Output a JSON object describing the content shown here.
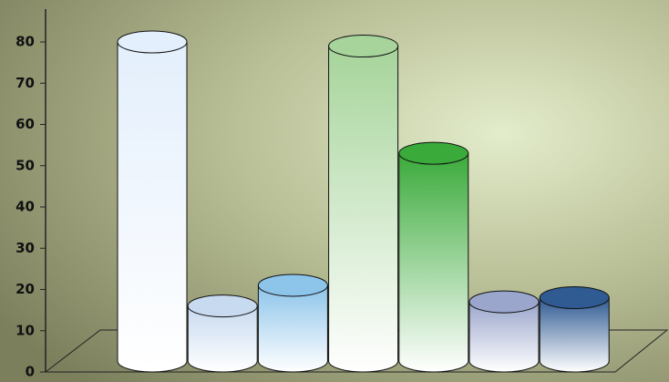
{
  "chart_data": {
    "type": "cylinder-bar",
    "categories": [
      null,
      null,
      null,
      null,
      null,
      null,
      null
    ],
    "values": [
      80,
      16,
      21,
      79,
      53,
      17,
      18
    ],
    "colors": [
      "#e3effc",
      "#c8daf0",
      "#8cc4ea",
      "#a6d49a",
      "#3aaa3a",
      "#9aa6cc",
      "#2f5a92"
    ],
    "ylim": [
      0,
      88
    ],
    "yticks": [
      0,
      10,
      20,
      30,
      40,
      50,
      60,
      70,
      80
    ]
  }
}
